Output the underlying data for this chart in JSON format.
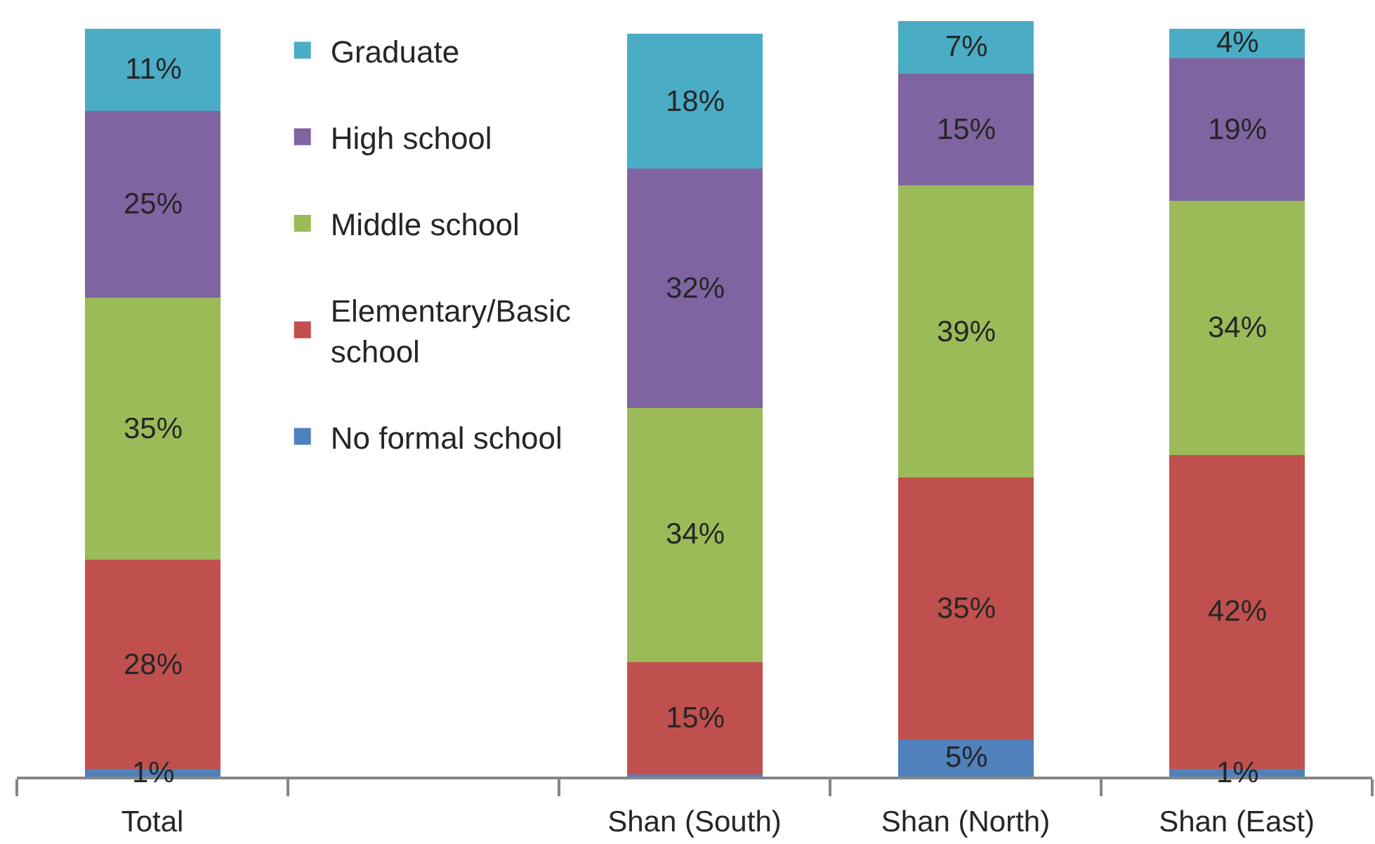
{
  "chart_data": {
    "type": "bar",
    "stacked": true,
    "categories": [
      "Total",
      null,
      "Shan (South)",
      "Shan (North)",
      "Shan (East)"
    ],
    "series": [
      {
        "name": "No formal school",
        "color": "#4f81bd",
        "values": [
          1,
          null,
          0.3,
          5,
          1
        ],
        "value_labels": [
          "1%",
          null,
          null,
          "5%",
          "1%"
        ]
      },
      {
        "name": "Elementary/Basic school",
        "color": "#c0504d",
        "values": [
          28,
          null,
          15,
          35,
          42
        ],
        "value_labels": [
          "28%",
          null,
          "15%",
          "35%",
          "42%"
        ]
      },
      {
        "name": "Middle school",
        "color": "#9bbb59",
        "values": [
          35,
          null,
          34,
          39,
          34
        ],
        "value_labels": [
          "35%",
          null,
          "34%",
          "39%",
          "34%"
        ]
      },
      {
        "name": "High school",
        "color": "#8064a2",
        "values": [
          25,
          null,
          32,
          15,
          19
        ],
        "value_labels": [
          "25%",
          null,
          "32%",
          "15%",
          "19%"
        ]
      },
      {
        "name": "Graduate",
        "color": "#4bacc6",
        "values": [
          11,
          null,
          18,
          7,
          4
        ],
        "value_labels": [
          "11%",
          null,
          "18%",
          "7%",
          "4%"
        ]
      }
    ],
    "ylim": [
      0,
      101
    ],
    "tick_labels": "x",
    "legend": "top left"
  }
}
